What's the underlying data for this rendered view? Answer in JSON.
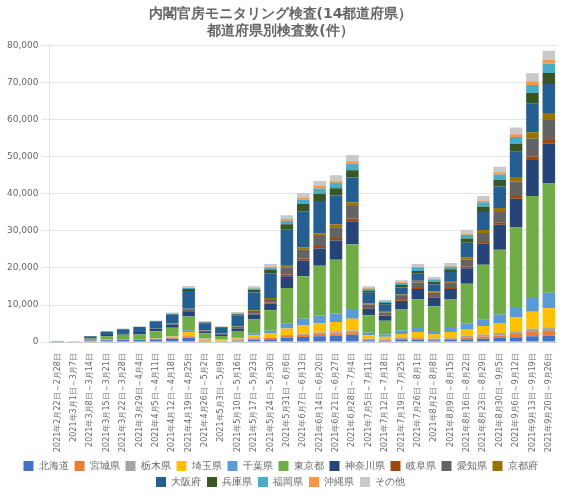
{
  "chart_data": {
    "type": "bar",
    "stacked": true,
    "title": "内閣官房モニタリング検査(14都道府県）\n都道府県別検査数(件）",
    "categories": [
      "2021年2月22日～2月28日",
      "2021年3月1日～3月7日",
      "2021年3月8日～3月14日",
      "2021年3月15日～3月21日",
      "2021年3月22日～3月28日",
      "2021年3月29日～4月4日",
      "2021年4月5日～4月11日",
      "2021年4月12日～4月18日",
      "2021年4月19日～4月25日",
      "2021年4月26日～5月2日",
      "2021年5月3日～5月9日",
      "2021年5月10日～5月16日",
      "2021年5月17日～5月23日",
      "2021年5月24日～5月30日",
      "2021年5月31日～6月6日",
      "2021年6月7日～6月13日",
      "2021年6月14日～6月20日",
      "2021年6月21日～6月27日",
      "2021年6月28日～7月4日",
      "2021年7月5日～7月11日",
      "2021年7月12日～7月18日",
      "2021年7月19日～7月25日",
      "2021年7月26日～8月1日",
      "2021年8月2日～8月8日",
      "2021年8月9日～8月15日",
      "2021年8月16日～8月22日",
      "2021年8月23日～8月29日",
      "2021年8月30日～9月5日",
      "2021年9月6日～9月12日",
      "2021年9月13日～9月19日",
      "2021年9月20日～9月26日"
    ],
    "series": [
      {
        "name": "北海道",
        "color": "#4472C4",
        "values": [
          30,
          100,
          400,
          500,
          600,
          600,
          700,
          900,
          1200,
          300,
          200,
          350,
          700,
          800,
          1200,
          1400,
          1600,
          1800,
          2000,
          500,
          400,
          600,
          700,
          500,
          600,
          800,
          900,
          1100,
          1300,
          1600,
          1800
        ]
      },
      {
        "name": "宮城県",
        "color": "#ED7D31",
        "values": [
          0,
          0,
          80,
          90,
          150,
          150,
          180,
          250,
          400,
          150,
          80,
          150,
          250,
          350,
          450,
          550,
          600,
          550,
          650,
          250,
          180,
          250,
          350,
          250,
          350,
          500,
          600,
          700,
          900,
          1100,
          1200
        ]
      },
      {
        "name": "栃木県",
        "color": "#A5A5A5",
        "values": [
          0,
          0,
          80,
          90,
          100,
          100,
          100,
          150,
          250,
          80,
          80,
          100,
          180,
          180,
          250,
          350,
          380,
          380,
          450,
          180,
          150,
          250,
          280,
          250,
          350,
          450,
          550,
          650,
          750,
          900,
          1000
        ]
      },
      {
        "name": "埼玉県",
        "color": "#FFC000",
        "values": [
          0,
          0,
          0,
          0,
          0,
          0,
          80,
          180,
          900,
          350,
          250,
          350,
          700,
          1000,
          1800,
          2200,
          2500,
          2700,
          3200,
          900,
          700,
          1100,
          1400,
          1100,
          1400,
          1800,
          2300,
          2700,
          3700,
          4600,
          5100
        ]
      },
      {
        "name": "千葉県",
        "color": "#5B9BD5",
        "values": [
          0,
          0,
          0,
          0,
          0,
          0,
          80,
          180,
          450,
          180,
          150,
          250,
          550,
          750,
          1400,
          1800,
          2000,
          2300,
          2600,
          700,
          600,
          900,
          1100,
          900,
          1100,
          1500,
          1800,
          2300,
          2800,
          3700,
          4200
        ]
      },
      {
        "name": "東京都",
        "color": "#70AD47",
        "values": [
          0,
          0,
          400,
          900,
          1100,
          1300,
          1800,
          2200,
          3700,
          1300,
          900,
          1800,
          3700,
          5500,
          9500,
          11500,
          13500,
          14500,
          17500,
          4700,
          3700,
          5700,
          7700,
          6700,
          7700,
          10700,
          14700,
          17500,
          21500,
          27500,
          29500
        ]
      },
      {
        "name": "神奈川県",
        "color": "#264478",
        "values": [
          0,
          0,
          180,
          350,
          450,
          550,
          650,
          900,
          1400,
          550,
          450,
          700,
          1400,
          1800,
          3200,
          4200,
          4700,
          5200,
          6200,
          1800,
          1400,
          2300,
          2800,
          2300,
          2800,
          4200,
          5700,
          6700,
          7700,
          9700,
          10700
        ]
      },
      {
        "name": "岐阜県",
        "color": "#9E480E",
        "values": [
          0,
          0,
          0,
          0,
          0,
          0,
          0,
          0,
          90,
          40,
          40,
          90,
          180,
          280,
          450,
          550,
          650,
          650,
          750,
          180,
          130,
          180,
          280,
          180,
          280,
          380,
          460,
          560,
          750,
          950,
          1050
        ]
      },
      {
        "name": "愛知県",
        "color": "#636363",
        "values": [
          0,
          0,
          0,
          0,
          0,
          0,
          90,
          180,
          450,
          180,
          180,
          380,
          750,
          950,
          1900,
          2400,
          2700,
          2900,
          3400,
          950,
          750,
          1150,
          1450,
          1150,
          1450,
          1900,
          2400,
          2900,
          3900,
          4900,
          5400
        ]
      },
      {
        "name": "京都府",
        "color": "#997300",
        "values": [
          0,
          0,
          0,
          0,
          0,
          0,
          0,
          90,
          180,
          90,
          90,
          90,
          180,
          280,
          450,
          650,
          750,
          850,
          950,
          280,
          180,
          380,
          480,
          380,
          480,
          670,
          870,
          1070,
          1270,
          1670,
          1870
        ]
      },
      {
        "name": "大阪府",
        "color": "#255E91",
        "values": [
          0,
          0,
          450,
          900,
          1100,
          1400,
          1900,
          2400,
          4800,
          1900,
          1400,
          2900,
          4800,
          6700,
          9700,
          9700,
          8700,
          7700,
          6700,
          2900,
          1900,
          1900,
          1900,
          1900,
          2400,
          3900,
          4800,
          5800,
          6800,
          7800,
          7800
        ]
      },
      {
        "name": "兵庫県",
        "color": "#375623",
        "values": [
          0,
          0,
          0,
          0,
          0,
          0,
          90,
          180,
          480,
          180,
          180,
          380,
          670,
          970,
          1470,
          1970,
          1970,
          1970,
          1970,
          570,
          470,
          670,
          770,
          670,
          770,
          1170,
          1470,
          1770,
          2170,
          2770,
          2970
        ]
      },
      {
        "name": "福岡県",
        "color": "#4BACC6",
        "values": [
          0,
          0,
          0,
          0,
          0,
          0,
          0,
          90,
          280,
          90,
          90,
          180,
          380,
          570,
          970,
          1170,
          1370,
          1470,
          1770,
          480,
          380,
          580,
          780,
          580,
          680,
          980,
          1180,
          1480,
          1780,
          2180,
          2480
        ]
      },
      {
        "name": "沖縄県",
        "color": "#F79646",
        "values": [
          0,
          0,
          0,
          0,
          0,
          0,
          0,
          0,
          90,
          40,
          40,
          90,
          180,
          280,
          480,
          580,
          680,
          580,
          680,
          180,
          130,
          180,
          280,
          180,
          280,
          380,
          480,
          580,
          780,
          980,
          1080
        ]
      },
      {
        "name": "その他",
        "color": "#C9C9C9",
        "values": [
          0,
          0,
          90,
          90,
          180,
          180,
          180,
          280,
          480,
          180,
          180,
          280,
          480,
          680,
          980,
          1180,
          1380,
          1480,
          1680,
          480,
          380,
          580,
          780,
          580,
          680,
          980,
          1180,
          1480,
          1780,
          2180,
          2480
        ]
      }
    ],
    "ylim": [
      0,
      80000
    ],
    "yticks": [
      0,
      {
        "value": 10000,
        "label": "10,000"
      },
      {
        "value": 20000,
        "label": "20,000"
      },
      {
        "value": 30000,
        "label": "30,000"
      },
      {
        "value": 40000,
        "label": "40,000"
      },
      {
        "value": 50000,
        "label": "50,000"
      },
      {
        "value": 60000,
        "label": "60,000"
      },
      {
        "value": 70000,
        "label": "70,000"
      },
      {
        "value": 80000,
        "label": "80,000"
      }
    ],
    "grid": true,
    "legend": "bottom"
  }
}
